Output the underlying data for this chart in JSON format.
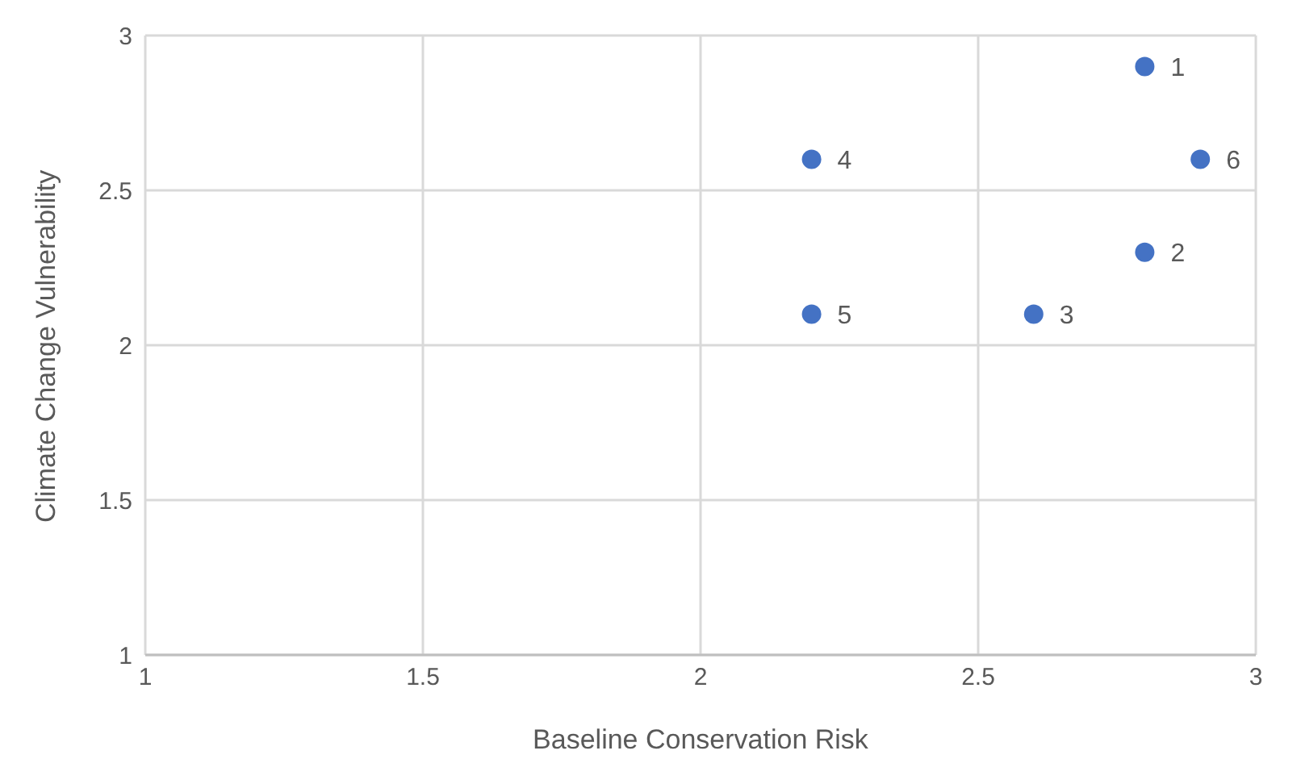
{
  "chart_data": {
    "type": "scatter",
    "xlabel": "Baseline Conservation Risk",
    "ylabel": "Climate Change Vulnerability",
    "x": [
      2.8,
      2.8,
      2.6,
      2.2,
      2.2,
      2.9
    ],
    "series": [
      {
        "color": "#4472c4",
        "values": [
          2.9,
          2.3,
          2.1,
          2.6,
          2.1,
          2.6
        ]
      }
    ],
    "xlim": [
      1,
      3
    ],
    "xticks": [
      1,
      1.5,
      2,
      2.5,
      3
    ],
    "ylim": [
      1,
      3
    ],
    "yticks": [
      1,
      1.5,
      2,
      2.5,
      3
    ],
    "grid": true,
    "marker": "circle",
    "legend": false,
    "annotations": [
      {
        "text": "1",
        "x": 2.8,
        "y": 2.9
      },
      {
        "text": "2",
        "x": 2.8,
        "y": 2.3
      },
      {
        "text": "3",
        "x": 2.6,
        "y": 2.1
      },
      {
        "text": "4",
        "x": 2.2,
        "y": 2.6
      },
      {
        "text": "5",
        "x": 2.2,
        "y": 2.1
      },
      {
        "text": "6",
        "x": 2.9,
        "y": 2.6
      }
    ]
  }
}
